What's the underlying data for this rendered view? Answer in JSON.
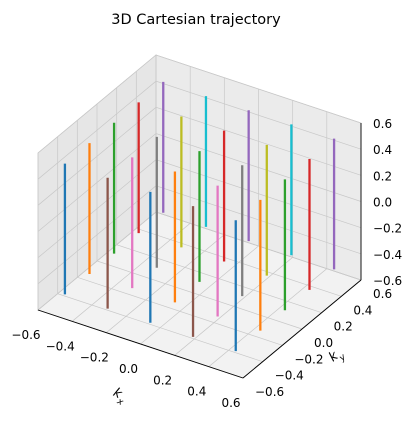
{
  "chart_data": {
    "type": "line",
    "title": "3D Cartesian trajectory",
    "xlabel": "k_x",
    "ylabel": "k_y",
    "zlabel": "",
    "xlim": [
      -0.6,
      0.6
    ],
    "ylim": [
      -0.6,
      0.6
    ],
    "zlim": [
      -0.6,
      0.6
    ],
    "xticks": [
      "−0.6",
      "−0.4",
      "−0.2",
      "0.0",
      "0.2",
      "0.4",
      "0.6"
    ],
    "yticks": [
      "−0.6",
      "−0.4",
      "−0.2",
      "0.0",
      "0.2",
      "0.4",
      "0.6"
    ],
    "zticks": [
      "−0.6",
      "−0.4",
      "−0.2",
      "0.0",
      "0.2",
      "0.4",
      "0.6"
    ],
    "grid": true,
    "description_of_series": "Each series is a straight readout line at fixed (kx, ky) running along kz from -0.5 to 0.5",
    "kx_positions": [
      -0.5,
      -0.25,
      0.0,
      0.25,
      0.5
    ],
    "ky_positions": [
      -0.5,
      -0.25,
      0.0,
      0.25,
      0.5
    ],
    "kz_range": [
      -0.5,
      0.5
    ],
    "colors": [
      "#1f77b4",
      "#ff7f0e",
      "#2ca02c",
      "#d62728",
      "#9467bd",
      "#8c564b",
      "#e377c2",
      "#7f7f7f",
      "#bcbd22",
      "#17becf"
    ]
  }
}
